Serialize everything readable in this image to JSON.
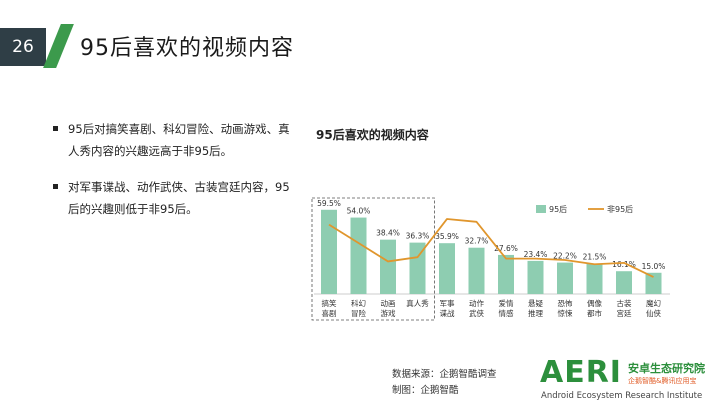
{
  "slide": {
    "number": "26",
    "title": "95后喜欢的视频内容"
  },
  "bullets": [
    "95后对搞笑喜剧、科幻冒险、动画游戏、真人秀内容的兴趣远高于非95后。",
    "对军事谍战、动作武侠、古装宫廷内容，95后的兴趣则低于非95后。"
  ],
  "footer": {
    "source": "数据来源：企鹅智酷调查",
    "made_by": "制图：企鹅智酷"
  },
  "logo": {
    "mark": "AERI",
    "cn": "安卓生态研究院",
    "sub": "企鹅智酷&腾讯应用宝",
    "en": "Android Ecosystem Research Institute"
  },
  "colors": {
    "bar": "#8ecdb1",
    "line": "#e0962d",
    "accent": "#3c9a4c",
    "logo": "#2c8f3c"
  },
  "chart_data": {
    "type": "bar",
    "title": "95后喜欢的视频内容",
    "categories": [
      [
        "搞笑",
        "喜剧"
      ],
      [
        "科幻",
        "冒险"
      ],
      [
        "动画",
        "游戏"
      ],
      [
        "真人秀"
      ],
      [
        "军事",
        "谍战"
      ],
      [
        "动作",
        "武侠"
      ],
      [
        "爱情",
        "情感"
      ],
      [
        "悬疑",
        "推理"
      ],
      [
        "恐怖",
        "惊悚"
      ],
      [
        "偶像",
        "都市"
      ],
      [
        "古装",
        "宫廷"
      ],
      [
        "魔幻",
        "仙侠"
      ]
    ],
    "series": [
      {
        "name": "95后",
        "type": "bar",
        "values": [
          59.5,
          54.0,
          38.4,
          36.3,
          35.9,
          32.7,
          27.6,
          23.4,
          22.2,
          21.5,
          16.1,
          15.0
        ],
        "labels": [
          "59.5%",
          "54.0%",
          "38.4%",
          "36.3%",
          "35.9%",
          "32.7%",
          "27.6%",
          "23.4%",
          "22.2%",
          "21.5%",
          "16.1%",
          "15.0%"
        ]
      },
      {
        "name": "非95后",
        "type": "line",
        "values": [
          49,
          36,
          23,
          26,
          53,
          51,
          25,
          25,
          24,
          21,
          22,
          12
        ]
      }
    ],
    "highlight_range": [
      0,
      3
    ],
    "ylim": [
      0,
      65
    ],
    "legend_position": "top-right"
  }
}
